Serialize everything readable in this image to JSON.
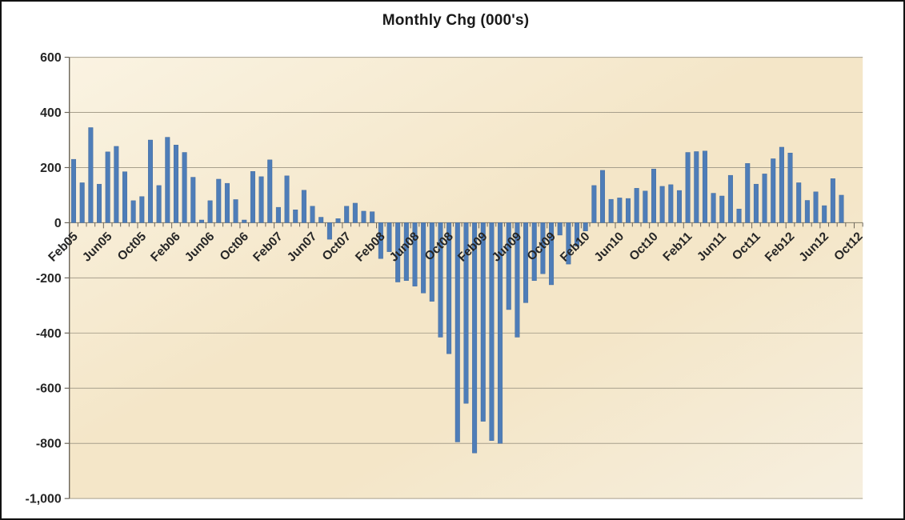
{
  "title": "Monthly Chg (000's)",
  "chart_data": {
    "type": "bar",
    "title": "Monthly Chg (000's)",
    "ylim": [
      -1000,
      600
    ],
    "ytick_step": 200,
    "yticks": [
      "600",
      "400",
      "200",
      "0",
      "-200",
      "-400",
      "-600",
      "-800",
      "-1,000"
    ],
    "xtick_labels": [
      "Feb05",
      "Jun05",
      "Oct05",
      "Feb06",
      "Jun06",
      "Oct06",
      "Feb07",
      "Jun07",
      "Oct07",
      "Feb08",
      "Jun08",
      "Oct08",
      "Feb09",
      "Jun09",
      "Oct09",
      "Feb10",
      "Jun10",
      "Oct10",
      "Feb11",
      "Jun11",
      "Oct11",
      "Feb12",
      "Jun12",
      "Oct12"
    ],
    "xtick_every": 4,
    "grid": true,
    "legend": "none",
    "categories": [
      "Feb05",
      "Mar05",
      "Apr05",
      "May05",
      "Jun05",
      "Jul05",
      "Aug05",
      "Sep05",
      "Oct05",
      "Nov05",
      "Dec05",
      "Jan06",
      "Feb06",
      "Mar06",
      "Apr06",
      "May06",
      "Jun06",
      "Jul06",
      "Aug06",
      "Sep06",
      "Oct06",
      "Nov06",
      "Dec06",
      "Jan07",
      "Feb07",
      "Mar07",
      "Apr07",
      "May07",
      "Jun07",
      "Jul07",
      "Aug07",
      "Sep07",
      "Oct07",
      "Nov07",
      "Dec07",
      "Jan08",
      "Feb08",
      "Mar08",
      "Apr08",
      "May08",
      "Jun08",
      "Jul08",
      "Aug08",
      "Sep08",
      "Oct08",
      "Nov08",
      "Dec08",
      "Jan09",
      "Feb09",
      "Mar09",
      "Apr09",
      "May09",
      "Jun09",
      "Jul09",
      "Aug09",
      "Sep09",
      "Oct09",
      "Nov09",
      "Dec09",
      "Jan10",
      "Feb10",
      "Mar10",
      "Apr10",
      "May10",
      "Jun10",
      "Jul10",
      "Aug10",
      "Sep10",
      "Oct10",
      "Nov10",
      "Dec10",
      "Jan11",
      "Feb11",
      "Mar11",
      "Apr11",
      "May11",
      "Jun11",
      "Jul11",
      "Aug11",
      "Sep11",
      "Oct11",
      "Nov11",
      "Dec11",
      "Jan12",
      "Feb12",
      "Mar12",
      "Apr12",
      "May12",
      "Jun12",
      "Jul12",
      "Aug12",
      "Sep12",
      "Oct12"
    ],
    "values": [
      230,
      145,
      345,
      140,
      257,
      277,
      185,
      80,
      95,
      300,
      135,
      310,
      282,
      255,
      165,
      10,
      80,
      158,
      143,
      84,
      10,
      186,
      167,
      228,
      56,
      170,
      47,
      118,
      60,
      20,
      -60,
      15,
      60,
      71,
      42,
      40,
      -130,
      -105,
      -215,
      -210,
      -230,
      -255,
      -285,
      -415,
      -475,
      -795,
      -655,
      -835,
      -720,
      -790,
      -800,
      -315,
      -415,
      -290,
      -210,
      -185,
      -225,
      -45,
      -150,
      -85,
      -30,
      135,
      190,
      85,
      90,
      88,
      125,
      115,
      195,
      132,
      138,
      117,
      255,
      258,
      260,
      107,
      97,
      172,
      50,
      215,
      140,
      177,
      232,
      274,
      253,
      145,
      81,
      112,
      62,
      160,
      100,
      null,
      null
    ],
    "colors": {
      "bar_fill": "#4E7DB8",
      "bar_edge": "#3D6496",
      "gridline": "#A79F8C",
      "zero_line": "#827C6B",
      "axis_line": "#6B655A",
      "tick": "#6B655A",
      "label_text": "#262626",
      "plot_bg_top_left": "#FAF3E2",
      "plot_bg_mid": "#F4E6C8",
      "plot_bg_bottom_right": "#F6EFDF",
      "outer_bg": "#FFFFFF",
      "border": "#111111"
    }
  }
}
